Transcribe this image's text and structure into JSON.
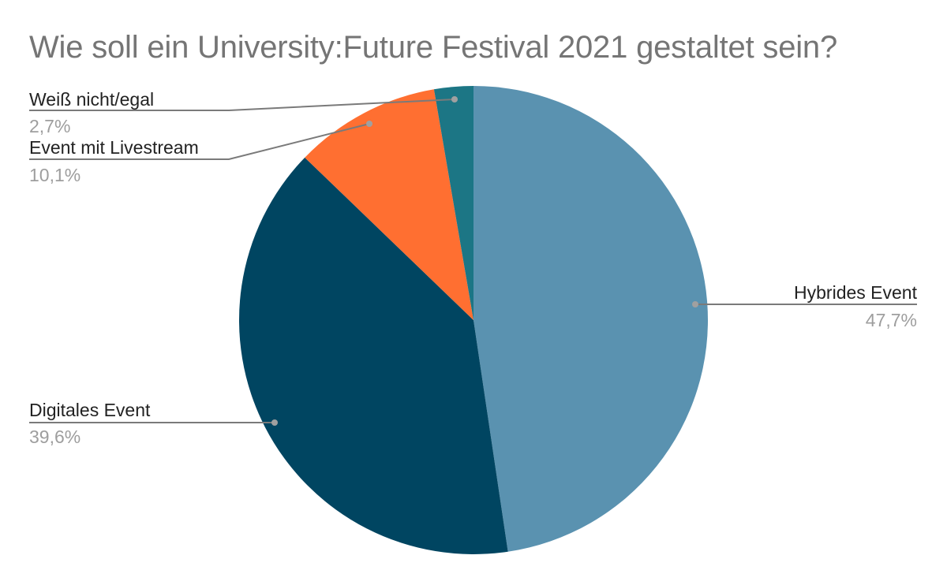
{
  "title": "Wie soll ein University:Future Festival 2021 gestaltet sein?",
  "slices": [
    {
      "label": "Hybrides Event",
      "value_label": "47,7%",
      "value": 47.7,
      "color": "#5a92b0"
    },
    {
      "label": "Digitales Event",
      "value_label": "39,6%",
      "value": 39.6,
      "color": "#004561"
    },
    {
      "label": "Event mit Livestream",
      "value_label": "10,1%",
      "value": 10.1,
      "color": "#ff6f31"
    },
    {
      "label": "Weiß nicht/egal",
      "value_label": "2,7%",
      "value": 2.7,
      "color": "#1c7685"
    }
  ],
  "chart_data": {
    "type": "pie",
    "title": "Wie soll ein University:Future Festival 2021 gestaltet sein?",
    "categories": [
      "Hybrides Event",
      "Digitales Event",
      "Event mit Livestream",
      "Weiß nicht/egal"
    ],
    "values": [
      47.7,
      39.6,
      10.1,
      2.7
    ],
    "unit": "%",
    "colors": [
      "#5a92b0",
      "#004561",
      "#ff6f31",
      "#1c7685"
    ],
    "legend": "none (callout labels)",
    "start_angle": "12 o'clock, clockwise"
  }
}
